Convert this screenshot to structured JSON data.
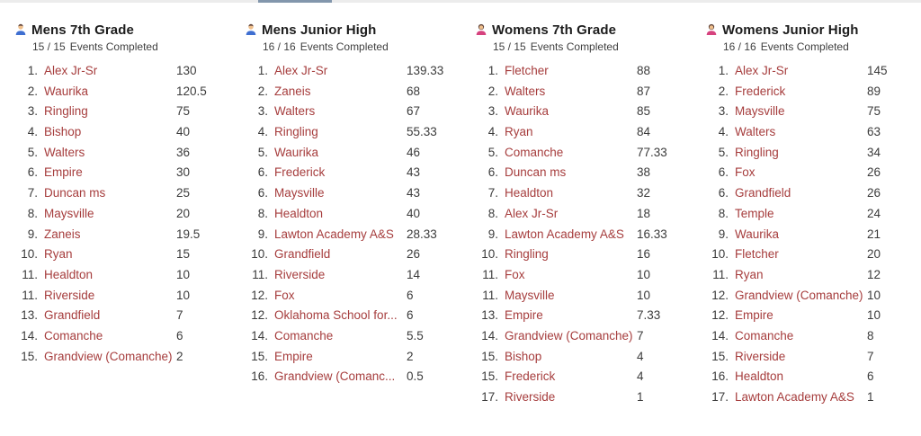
{
  "boards": [
    {
      "title": "Mens 7th Grade",
      "icon": "man-icon",
      "completed": "15 / 15",
      "events_label": "Events Completed",
      "rows": [
        {
          "rank": "1.",
          "team": "Alex Jr-Sr",
          "score": "130"
        },
        {
          "rank": "2.",
          "team": "Waurika",
          "score": "120.5"
        },
        {
          "rank": "3.",
          "team": "Ringling",
          "score": "75"
        },
        {
          "rank": "4.",
          "team": "Bishop",
          "score": "40"
        },
        {
          "rank": "5.",
          "team": "Walters",
          "score": "36"
        },
        {
          "rank": "6.",
          "team": "Empire",
          "score": "30"
        },
        {
          "rank": "7.",
          "team": "Duncan ms",
          "score": "25"
        },
        {
          "rank": "8.",
          "team": "Maysville",
          "score": "20"
        },
        {
          "rank": "9.",
          "team": "Zaneis",
          "score": "19.5"
        },
        {
          "rank": "10.",
          "team": "Ryan",
          "score": "15"
        },
        {
          "rank": "11.",
          "team": "Healdton",
          "score": "10"
        },
        {
          "rank": "11.",
          "team": "Riverside",
          "score": "10"
        },
        {
          "rank": "13.",
          "team": "Grandfield",
          "score": "7"
        },
        {
          "rank": "14.",
          "team": "Comanche",
          "score": "6"
        },
        {
          "rank": "15.",
          "team": "Grandview (Comanche)",
          "score": "2"
        }
      ]
    },
    {
      "title": "Mens Junior High",
      "icon": "man-icon",
      "completed": "16 / 16",
      "events_label": "Events Completed",
      "rows": [
        {
          "rank": "1.",
          "team": "Alex Jr-Sr",
          "score": "139.33"
        },
        {
          "rank": "2.",
          "team": "Zaneis",
          "score": "68"
        },
        {
          "rank": "3.",
          "team": "Walters",
          "score": "67"
        },
        {
          "rank": "4.",
          "team": "Ringling",
          "score": "55.33"
        },
        {
          "rank": "5.",
          "team": "Waurika",
          "score": "46"
        },
        {
          "rank": "6.",
          "team": "Frederick",
          "score": "43"
        },
        {
          "rank": "6.",
          "team": "Maysville",
          "score": "43"
        },
        {
          "rank": "8.",
          "team": "Healdton",
          "score": "40"
        },
        {
          "rank": "9.",
          "team": "Lawton Academy A&S",
          "score": "28.33"
        },
        {
          "rank": "10.",
          "team": "Grandfield",
          "score": "26"
        },
        {
          "rank": "11.",
          "team": "Riverside",
          "score": "14"
        },
        {
          "rank": "12.",
          "team": "Fox",
          "score": "6"
        },
        {
          "rank": "12.",
          "team": "Oklahoma School for...",
          "score": "6"
        },
        {
          "rank": "14.",
          "team": "Comanche",
          "score": "5.5"
        },
        {
          "rank": "15.",
          "team": "Empire",
          "score": "2"
        },
        {
          "rank": "16.",
          "team": "Grandview (Comanc...",
          "score": "0.5"
        }
      ]
    },
    {
      "title": "Womens 7th Grade",
      "icon": "woman-icon",
      "completed": "15 / 15",
      "events_label": "Events Completed",
      "rows": [
        {
          "rank": "1.",
          "team": "Fletcher",
          "score": "88"
        },
        {
          "rank": "2.",
          "team": "Walters",
          "score": "87"
        },
        {
          "rank": "3.",
          "team": "Waurika",
          "score": "85"
        },
        {
          "rank": "4.",
          "team": "Ryan",
          "score": "84"
        },
        {
          "rank": "5.",
          "team": "Comanche",
          "score": "77.33"
        },
        {
          "rank": "6.",
          "team": "Duncan ms",
          "score": "38"
        },
        {
          "rank": "7.",
          "team": "Healdton",
          "score": "32"
        },
        {
          "rank": "8.",
          "team": "Alex Jr-Sr",
          "score": "18"
        },
        {
          "rank": "9.",
          "team": "Lawton Academy A&S",
          "score": "16.33"
        },
        {
          "rank": "10.",
          "team": "Ringling",
          "score": "16"
        },
        {
          "rank": "11.",
          "team": "Fox",
          "score": "10"
        },
        {
          "rank": "11.",
          "team": "Maysville",
          "score": "10"
        },
        {
          "rank": "13.",
          "team": "Empire",
          "score": "7.33"
        },
        {
          "rank": "14.",
          "team": "Grandview (Comanche)",
          "score": "7"
        },
        {
          "rank": "15.",
          "team": "Bishop",
          "score": "4"
        },
        {
          "rank": "15.",
          "team": "Frederick",
          "score": "4"
        },
        {
          "rank": "17.",
          "team": "Riverside",
          "score": "1"
        }
      ]
    },
    {
      "title": "Womens Junior High",
      "icon": "woman-icon",
      "completed": "16 / 16",
      "events_label": "Events Completed",
      "rows": [
        {
          "rank": "1.",
          "team": "Alex Jr-Sr",
          "score": "145"
        },
        {
          "rank": "2.",
          "team": "Frederick",
          "score": "89"
        },
        {
          "rank": "3.",
          "team": "Maysville",
          "score": "75"
        },
        {
          "rank": "4.",
          "team": "Walters",
          "score": "63"
        },
        {
          "rank": "5.",
          "team": "Ringling",
          "score": "34"
        },
        {
          "rank": "6.",
          "team": "Fox",
          "score": "26"
        },
        {
          "rank": "6.",
          "team": "Grandfield",
          "score": "26"
        },
        {
          "rank": "8.",
          "team": "Temple",
          "score": "24"
        },
        {
          "rank": "9.",
          "team": "Waurika",
          "score": "21"
        },
        {
          "rank": "10.",
          "team": "Fletcher",
          "score": "20"
        },
        {
          "rank": "11.",
          "team": "Ryan",
          "score": "12"
        },
        {
          "rank": "12.",
          "team": "Grandview (Comanche)",
          "score": "10"
        },
        {
          "rank": "12.",
          "team": "Empire",
          "score": "10"
        },
        {
          "rank": "14.",
          "team": "Comanche",
          "score": "8"
        },
        {
          "rank": "15.",
          "team": "Riverside",
          "score": "7"
        },
        {
          "rank": "16.",
          "team": "Healdton",
          "score": "6"
        },
        {
          "rank": "17.",
          "team": "Lawton Academy A&S",
          "score": "1"
        }
      ]
    }
  ],
  "colors": {
    "team_link": "#a63d3d",
    "rank_score_text": "#3b3b3b",
    "title_text": "#1c1c1c",
    "scroll_thumb": "#8296ac"
  }
}
